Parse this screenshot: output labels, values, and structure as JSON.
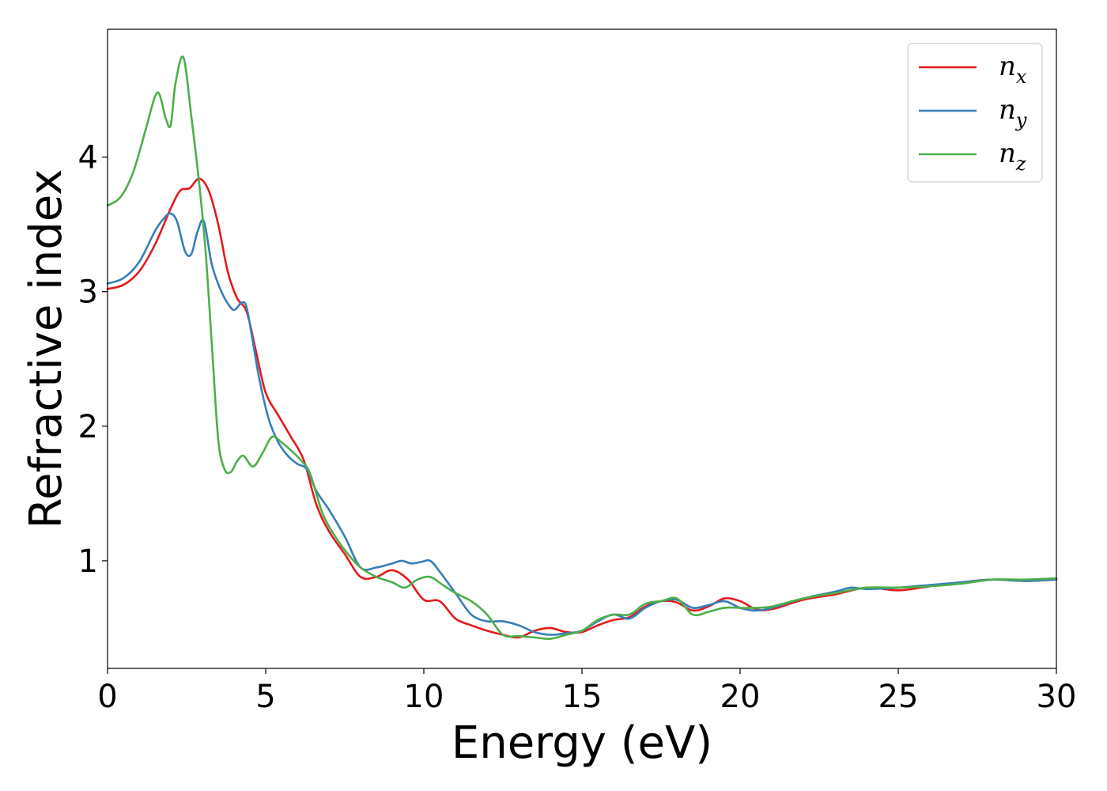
{
  "chart_data": {
    "type": "line",
    "xlabel": "Energy (eV)",
    "ylabel": "Refractive index",
    "xlim": [
      0,
      30
    ],
    "ylim": [
      0.2,
      4.95
    ],
    "xticks": [
      0,
      5,
      10,
      15,
      20,
      25,
      30
    ],
    "yticks": [
      1,
      2,
      3,
      4
    ],
    "grid": false,
    "legend_position": "top-right",
    "series": [
      {
        "name": "n_x",
        "label_base": "n",
        "label_sub": "x",
        "color": "#e41a1c",
        "x": [
          0,
          0.5,
          1.0,
          1.5,
          2.0,
          2.3,
          2.6,
          2.9,
          3.2,
          3.5,
          3.8,
          4.1,
          4.4,
          4.7,
          5.0,
          5.4,
          5.8,
          6.2,
          6.6,
          7.0,
          7.5,
          8.0,
          8.5,
          9.0,
          9.5,
          10.0,
          10.5,
          11.0,
          11.5,
          12.0,
          12.5,
          13.0,
          13.5,
          14.0,
          14.5,
          15.0,
          15.5,
          16.0,
          16.5,
          17.0,
          17.5,
          18.0,
          18.5,
          19.0,
          19.5,
          20.0,
          20.5,
          21.0,
          22.0,
          23.0,
          24.0,
          25.0,
          26.0,
          27.0,
          28.0,
          29.0,
          30.0
        ],
        "values": [
          3.02,
          3.05,
          3.15,
          3.35,
          3.62,
          3.75,
          3.77,
          3.84,
          3.75,
          3.5,
          3.15,
          2.95,
          2.85,
          2.55,
          2.25,
          2.08,
          1.92,
          1.75,
          1.42,
          1.22,
          1.05,
          0.88,
          0.88,
          0.93,
          0.86,
          0.71,
          0.7,
          0.57,
          0.52,
          0.48,
          0.45,
          0.43,
          0.48,
          0.5,
          0.47,
          0.47,
          0.52,
          0.56,
          0.58,
          0.66,
          0.7,
          0.69,
          0.63,
          0.66,
          0.72,
          0.7,
          0.64,
          0.64,
          0.71,
          0.75,
          0.8,
          0.78,
          0.81,
          0.84,
          0.86,
          0.85,
          0.86
        ]
      },
      {
        "name": "n_y",
        "label_base": "n",
        "label_sub": "y",
        "color": "#377eb8",
        "x": [
          0,
          0.5,
          1.0,
          1.5,
          1.8,
          2.0,
          2.2,
          2.45,
          2.65,
          2.85,
          3.05,
          3.3,
          3.6,
          3.9,
          4.05,
          4.25,
          4.4,
          4.6,
          4.8,
          5.1,
          5.4,
          5.7,
          6.0,
          6.3,
          6.6,
          7.0,
          7.5,
          8.0,
          8.5,
          9.0,
          9.3,
          9.6,
          9.9,
          10.2,
          10.5,
          11.0,
          11.5,
          12.0,
          12.5,
          13.0,
          13.5,
          14.0,
          14.5,
          15.0,
          15.5,
          16.0,
          16.5,
          17.0,
          17.5,
          18.0,
          18.5,
          19.0,
          19.5,
          20.0,
          20.5,
          21.0,
          22.0,
          23.0,
          23.5,
          24.0,
          25.0,
          26.0,
          27.0,
          28.0,
          29.0,
          30.0
        ],
        "values": [
          3.06,
          3.1,
          3.22,
          3.45,
          3.55,
          3.58,
          3.52,
          3.3,
          3.28,
          3.45,
          3.52,
          3.2,
          3.0,
          2.88,
          2.87,
          2.92,
          2.88,
          2.62,
          2.35,
          2.05,
          1.88,
          1.78,
          1.72,
          1.68,
          1.52,
          1.38,
          1.18,
          0.95,
          0.95,
          0.98,
          1.0,
          0.98,
          0.99,
          1.0,
          0.92,
          0.76,
          0.6,
          0.55,
          0.55,
          0.52,
          0.47,
          0.45,
          0.46,
          0.48,
          0.55,
          0.6,
          0.57,
          0.65,
          0.7,
          0.71,
          0.65,
          0.67,
          0.7,
          0.65,
          0.63,
          0.65,
          0.72,
          0.77,
          0.8,
          0.79,
          0.8,
          0.82,
          0.84,
          0.86,
          0.85,
          0.86
        ]
      },
      {
        "name": "n_z",
        "label_base": "n",
        "label_sub": "z",
        "color": "#4daf4a",
        "x": [
          0,
          0.4,
          0.8,
          1.2,
          1.5,
          1.65,
          1.85,
          2.0,
          2.15,
          2.4,
          2.65,
          2.9,
          3.1,
          3.3,
          3.5,
          3.7,
          3.9,
          4.1,
          4.3,
          4.6,
          4.9,
          5.2,
          5.5,
          5.8,
          6.1,
          6.4,
          6.8,
          7.2,
          7.6,
          8.0,
          8.5,
          9.0,
          9.4,
          9.8,
          10.2,
          10.6,
          11.0,
          11.5,
          12.0,
          12.5,
          13.0,
          13.5,
          14.0,
          14.5,
          15.0,
          15.5,
          16.0,
          16.5,
          17.0,
          17.5,
          18.0,
          18.5,
          19.0,
          19.5,
          20.0,
          20.5,
          21.0,
          22.0,
          23.0,
          24.0,
          25.0,
          26.0,
          27.0,
          28.0,
          29.0,
          30.0
        ],
        "values": [
          3.64,
          3.7,
          3.88,
          4.2,
          4.45,
          4.46,
          4.28,
          4.24,
          4.55,
          4.74,
          4.3,
          3.8,
          3.3,
          2.6,
          1.9,
          1.68,
          1.66,
          1.74,
          1.78,
          1.7,
          1.8,
          1.92,
          1.88,
          1.82,
          1.75,
          1.65,
          1.35,
          1.18,
          1.05,
          0.95,
          0.88,
          0.84,
          0.8,
          0.86,
          0.88,
          0.82,
          0.76,
          0.7,
          0.6,
          0.45,
          0.44,
          0.43,
          0.42,
          0.45,
          0.48,
          0.56,
          0.6,
          0.6,
          0.68,
          0.7,
          0.72,
          0.6,
          0.62,
          0.65,
          0.65,
          0.65,
          0.66,
          0.72,
          0.76,
          0.8,
          0.8,
          0.81,
          0.83,
          0.86,
          0.86,
          0.87
        ]
      }
    ]
  }
}
